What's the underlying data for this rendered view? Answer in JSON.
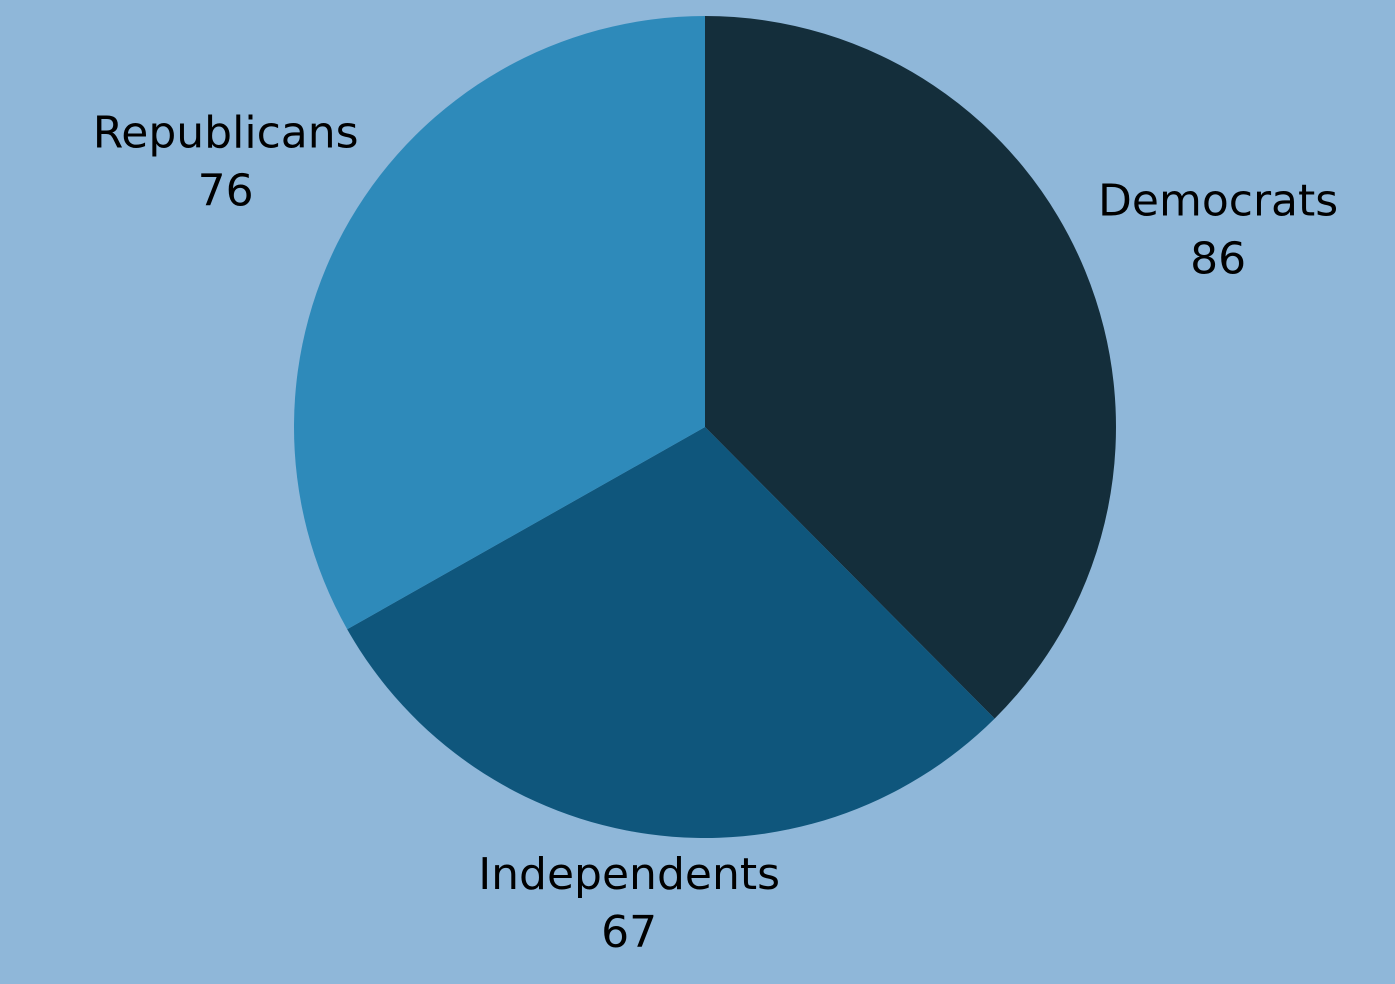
{
  "chart_data": {
    "type": "pie",
    "background": "#8fb7d9",
    "title": "",
    "slices": [
      {
        "label": "Democrats",
        "value": 86,
        "color": "#142e3b"
      },
      {
        "label": "Independents",
        "value": 67,
        "color": "#0f567c"
      },
      {
        "label": "Republicans",
        "value": 76,
        "color": "#2e8aba"
      }
    ],
    "start_angle": "12 o'clock",
    "direction": "clockwise",
    "labels_show_values": true
  }
}
